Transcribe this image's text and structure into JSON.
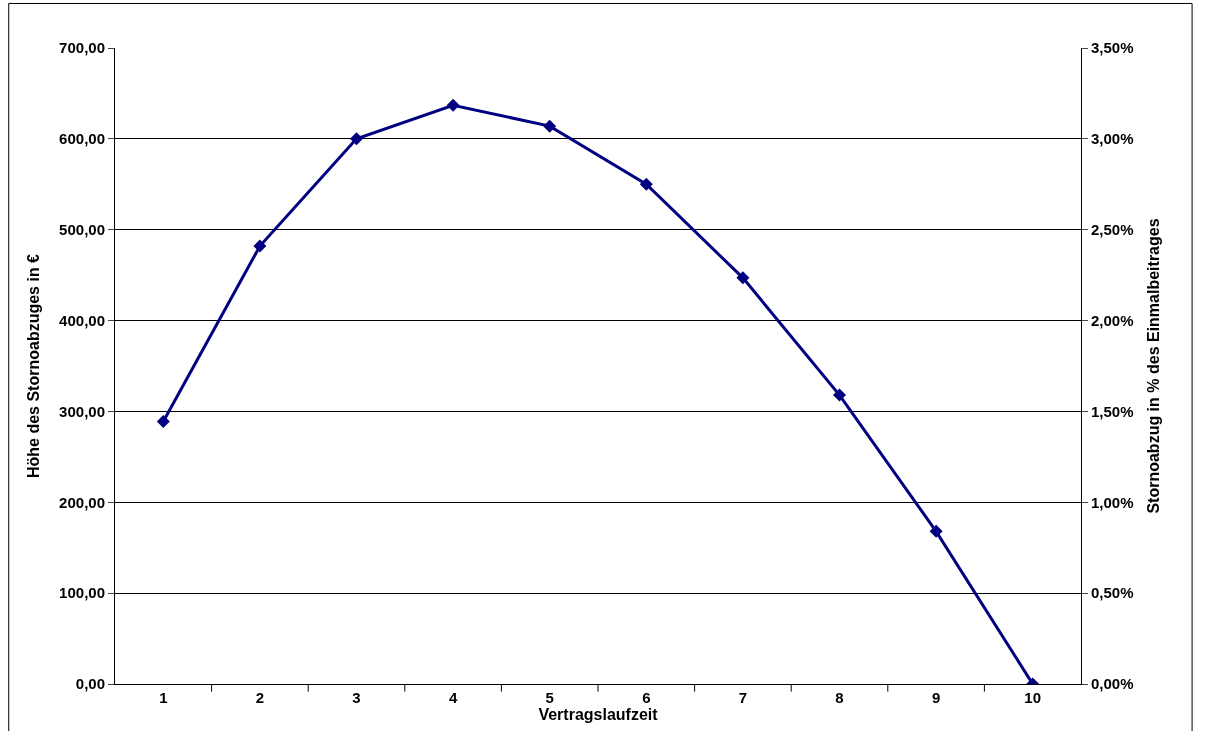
{
  "chart_data": {
    "type": "line",
    "xlabel": "Vertragslaufzeit",
    "ylabel": "Höhe des Stornoabzuges in €",
    "y2label": "Stornoabzug in % des Einmalbeitrages",
    "categories": [
      "1",
      "2",
      "3",
      "4",
      "5",
      "6",
      "7",
      "8",
      "9",
      "10"
    ],
    "series": [
      {
        "color": "#000080",
        "values": [
          289,
          482,
          600,
          637,
          614,
          550,
          447,
          318,
          168,
          0
        ]
      }
    ],
    "ylim": [
      0,
      700
    ],
    "yticks": [
      {
        "value": 0,
        "label": "0,00"
      },
      {
        "value": 100,
        "label": "100,00"
      },
      {
        "value": 200,
        "label": "200,00"
      },
      {
        "value": 300,
        "label": "300,00"
      },
      {
        "value": 400,
        "label": "400,00"
      },
      {
        "value": 500,
        "label": "500,00"
      },
      {
        "value": 600,
        "label": "600,00"
      },
      {
        "value": 700,
        "label": "700,00"
      }
    ],
    "y2lim": [
      0,
      3.5
    ],
    "y2ticks": [
      {
        "value": 0,
        "label": "0,00%"
      },
      {
        "value": 0.5,
        "label": "0,50%"
      },
      {
        "value": 1,
        "label": "1,00%"
      },
      {
        "value": 1.5,
        "label": "1,50%"
      },
      {
        "value": 2,
        "label": "2,00%"
      },
      {
        "value": 2.5,
        "label": "2,50%"
      },
      {
        "value": 3,
        "label": "3,00%"
      },
      {
        "value": 3.5,
        "label": "3,50%"
      }
    ],
    "grid": "y",
    "marker": "diamond",
    "line_style": "solid",
    "legend": false
  }
}
